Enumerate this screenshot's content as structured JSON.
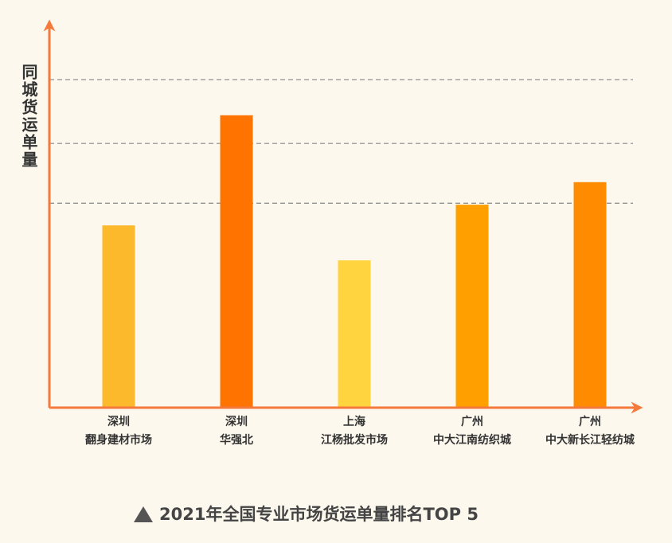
{
  "chart_data": {
    "type": "bar",
    "title": "2021年全国专业市场货运单量排名TOP 5",
    "y_label": "同城货运单量",
    "categories": [
      [
        "深圳",
        "翻身建材市场"
      ],
      [
        "深圳",
        "华强北"
      ],
      [
        "上海",
        "江杨批发市场"
      ],
      [
        "广州",
        "中大江南纺织城"
      ],
      [
        "广州",
        "中大新长江轻纺城"
      ]
    ],
    "values": [
      48.5,
      77.8,
      39.2,
      54,
      60
    ],
    "colors": [
      "#fdb92c",
      "#ff7300",
      "#ffd43f",
      "#ffa000",
      "#ff8c00"
    ],
    "ylim": [
      0,
      100
    ],
    "ygrid": [
      54.4,
      70.3,
      87.3
    ],
    "grid": true
  }
}
